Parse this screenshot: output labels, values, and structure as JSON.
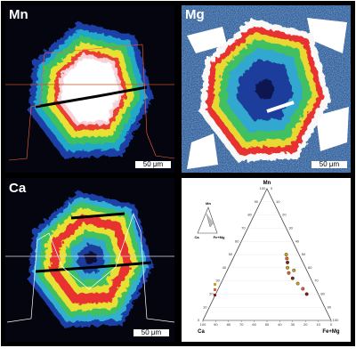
{
  "panels": [
    {
      "label": "Mn",
      "scale_bar": "50 μm"
    },
    {
      "label": "Mg",
      "scale_bar": "50 μm"
    },
    {
      "label": "Ca",
      "scale_bar": "50 μm"
    }
  ],
  "ternary": {
    "apex_top": "Mn",
    "apex_left": "Ca",
    "apex_right": "Fe+Mg",
    "inset": {
      "top": "Mn",
      "left": "Ca",
      "right": "Fe+Mg"
    },
    "ticks": [
      100,
      90,
      80,
      70,
      60,
      50,
      40,
      30,
      20,
      10,
      0
    ],
    "points": [
      {
        "mn": 50,
        "ca": 10,
        "fe_mg": 40
      },
      {
        "mn": 47,
        "ca": 11,
        "fe_mg": 42
      },
      {
        "mn": 44,
        "ca": 12,
        "fe_mg": 44
      },
      {
        "mn": 40,
        "ca": 14,
        "fe_mg": 46
      },
      {
        "mn": 36,
        "ca": 15,
        "fe_mg": 49
      },
      {
        "mn": 32,
        "ca": 14,
        "fe_mg": 54
      },
      {
        "mn": 28,
        "ca": 12,
        "fe_mg": 60
      },
      {
        "mn": 24,
        "ca": 10,
        "fe_mg": 66
      },
      {
        "mn": 20,
        "ca": 9,
        "fe_mg": 71
      },
      {
        "mn": 38,
        "ca": 10,
        "fe_mg": 52
      }
    ]
  }
}
